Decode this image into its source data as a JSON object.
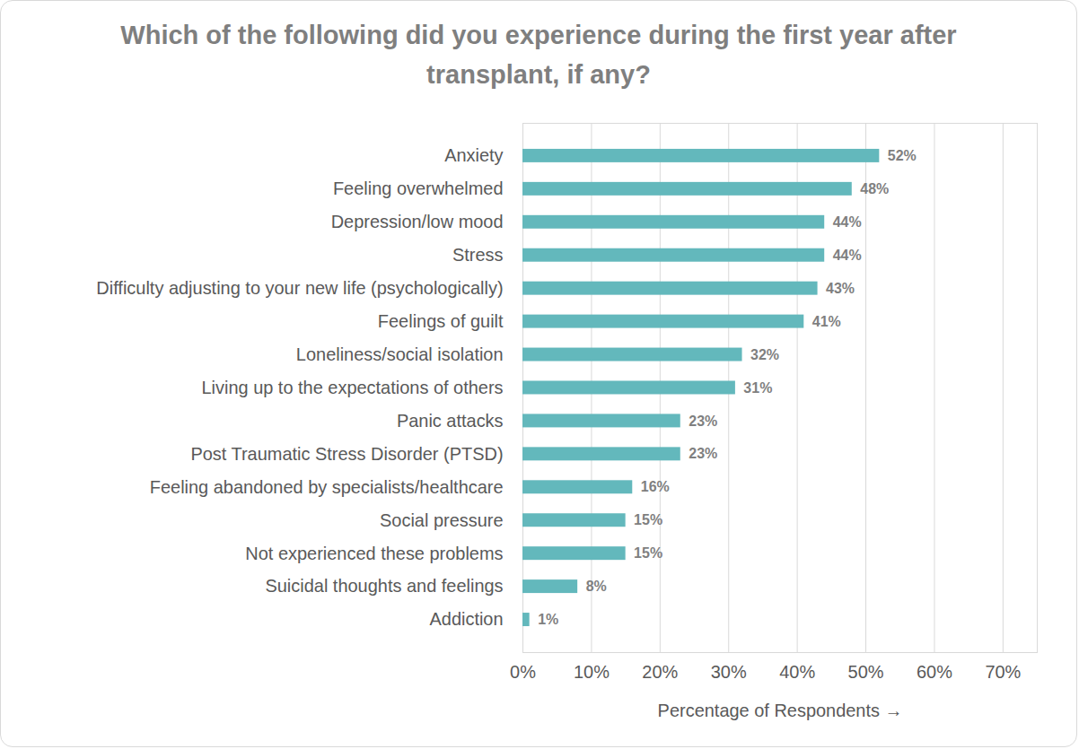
{
  "chart_data": {
    "type": "bar",
    "orientation": "horizontal",
    "title": "Which of the following did you experience during the first year after transplant, if any?",
    "x_label": "Percentage of Respondents",
    "categories": [
      "Anxiety",
      "Feeling overwhelmed",
      "Depression/low mood",
      "Stress",
      "Difficulty adjusting to your new life (psychologically)",
      "Feelings of guilt",
      "Loneliness/social isolation",
      "Living up to the expectations of others",
      "Panic attacks",
      "Post Traumatic Stress Disorder (PTSD)",
      "Feeling abandoned by specialists/healthcare",
      "Social pressure",
      "Not experienced these problems",
      "Suicidal thoughts and feelings",
      "Addiction"
    ],
    "values": [
      52,
      48,
      44,
      44,
      43,
      41,
      32,
      31,
      23,
      23,
      16,
      15,
      15,
      8,
      1
    ],
    "value_labels": [
      "52%",
      "48%",
      "44%",
      "44%",
      "43%",
      "41%",
      "32%",
      "31%",
      "23%",
      "23%",
      "16%",
      "15%",
      "15%",
      "8%",
      "1%"
    ],
    "color": "#63b8bc",
    "xlim": [
      0,
      75
    ],
    "xticks": [
      {
        "value": 0,
        "label": "0%"
      },
      {
        "value": 10,
        "label": "10%"
      },
      {
        "value": 20,
        "label": "20%"
      },
      {
        "value": 30,
        "label": "30%"
      },
      {
        "value": 40,
        "label": "40%"
      },
      {
        "value": 50,
        "label": "50%"
      },
      {
        "value": 60,
        "label": "60%"
      },
      {
        "value": 70,
        "label": "70%"
      }
    ],
    "grid": true,
    "data_labels": true
  }
}
